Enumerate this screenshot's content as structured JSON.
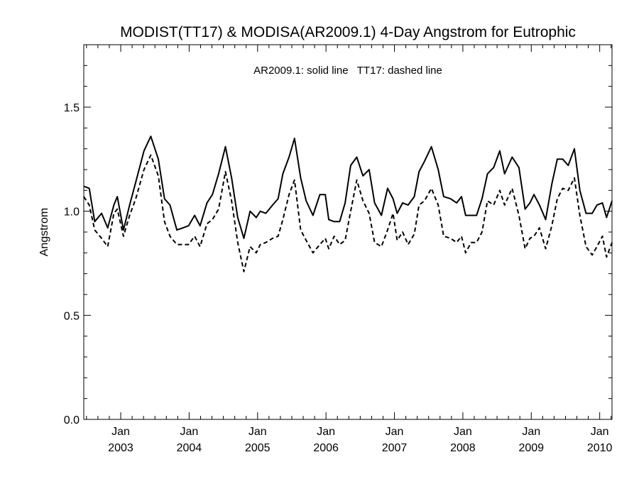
{
  "chart_data": {
    "type": "line",
    "title": "MODIST(TT17) & MODISA(AR2009.1) 4-Day Angstrom for Eutrophic",
    "annotation": "AR2009.1: solid line   TT17: dashed line",
    "xlabel": "",
    "ylabel": "Angstrom",
    "xlim": [
      2002.46,
      2010.18
    ],
    "ylim": [
      0.0,
      1.8
    ],
    "yticks": [
      {
        "value": 0.0,
        "label": "0.0"
      },
      {
        "value": 0.5,
        "label": "0.5"
      },
      {
        "value": 1.0,
        "label": "1.0"
      },
      {
        "value": 1.5,
        "label": "1.5"
      }
    ],
    "xticks": [
      {
        "value": 2003.0,
        "month": "Jan",
        "year": "2003"
      },
      {
        "value": 2004.0,
        "month": "Jan",
        "year": "2004"
      },
      {
        "value": 2005.0,
        "month": "Jan",
        "year": "2005"
      },
      {
        "value": 2006.0,
        "month": "Jan",
        "year": "2006"
      },
      {
        "value": 2007.0,
        "month": "Jan",
        "year": "2007"
      },
      {
        "value": 2008.0,
        "month": "Jan",
        "year": "2008"
      },
      {
        "value": 2009.0,
        "month": "Jan",
        "year": "2009"
      },
      {
        "value": 2010.0,
        "month": "Jan",
        "year": "2010"
      }
    ],
    "grid": false,
    "series": [
      {
        "style": "solid",
        "color": "#000000",
        "points": [
          [
            2002.46,
            1.12
          ],
          [
            2002.54,
            1.11
          ],
          [
            2002.62,
            0.95
          ],
          [
            2002.72,
            0.99
          ],
          [
            2002.81,
            0.92
          ],
          [
            2002.9,
            1.03
          ],
          [
            2002.95,
            1.07
          ],
          [
            2003.04,
            0.91
          ],
          [
            2003.13,
            1.03
          ],
          [
            2003.22,
            1.14
          ],
          [
            2003.34,
            1.29
          ],
          [
            2003.44,
            1.36
          ],
          [
            2003.55,
            1.25
          ],
          [
            2003.64,
            1.06
          ],
          [
            2003.72,
            1.03
          ],
          [
            2003.82,
            0.91
          ],
          [
            2003.91,
            0.92
          ],
          [
            2003.99,
            0.93
          ],
          [
            2004.08,
            0.98
          ],
          [
            2004.16,
            0.93
          ],
          [
            2004.26,
            1.04
          ],
          [
            2004.34,
            1.08
          ],
          [
            2004.43,
            1.18
          ],
          [
            2004.53,
            1.31
          ],
          [
            2004.62,
            1.16
          ],
          [
            2004.71,
            0.97
          ],
          [
            2004.8,
            0.87
          ],
          [
            2004.89,
            1.0
          ],
          [
            2004.98,
            0.97
          ],
          [
            2005.04,
            1.0
          ],
          [
            2005.12,
            0.99
          ],
          [
            2005.22,
            1.03
          ],
          [
            2005.3,
            1.06
          ],
          [
            2005.37,
            1.18
          ],
          [
            2005.46,
            1.26
          ],
          [
            2005.54,
            1.35
          ],
          [
            2005.63,
            1.16
          ],
          [
            2005.71,
            1.05
          ],
          [
            2005.81,
            0.98
          ],
          [
            2005.91,
            1.08
          ],
          [
            2005.99,
            1.08
          ],
          [
            2006.04,
            0.96
          ],
          [
            2006.12,
            0.95
          ],
          [
            2006.2,
            0.95
          ],
          [
            2006.28,
            1.04
          ],
          [
            2006.36,
            1.22
          ],
          [
            2006.45,
            1.26
          ],
          [
            2006.54,
            1.17
          ],
          [
            2006.63,
            1.2
          ],
          [
            2006.71,
            1.04
          ],
          [
            2006.81,
            0.98
          ],
          [
            2006.9,
            1.11
          ],
          [
            2006.98,
            1.06
          ],
          [
            2007.04,
            0.99
          ],
          [
            2007.12,
            1.04
          ],
          [
            2007.2,
            1.03
          ],
          [
            2007.29,
            1.07
          ],
          [
            2007.36,
            1.19
          ],
          [
            2007.44,
            1.24
          ],
          [
            2007.54,
            1.31
          ],
          [
            2007.64,
            1.2
          ],
          [
            2007.72,
            1.07
          ],
          [
            2007.82,
            1.06
          ],
          [
            2007.91,
            1.04
          ],
          [
            2007.98,
            1.07
          ],
          [
            2008.04,
            0.98
          ],
          [
            2008.12,
            0.98
          ],
          [
            2008.2,
            0.98
          ],
          [
            2008.28,
            1.06
          ],
          [
            2008.36,
            1.18
          ],
          [
            2008.45,
            1.21
          ],
          [
            2008.54,
            1.29
          ],
          [
            2008.61,
            1.18
          ],
          [
            2008.72,
            1.26
          ],
          [
            2008.82,
            1.21
          ],
          [
            2008.91,
            1.01
          ],
          [
            2008.98,
            1.04
          ],
          [
            2009.04,
            1.08
          ],
          [
            2009.12,
            1.03
          ],
          [
            2009.21,
            0.96
          ],
          [
            2009.3,
            1.13
          ],
          [
            2009.38,
            1.25
          ],
          [
            2009.46,
            1.25
          ],
          [
            2009.54,
            1.22
          ],
          [
            2009.63,
            1.3
          ],
          [
            2009.71,
            1.1
          ],
          [
            2009.8,
            0.99
          ],
          [
            2009.89,
            0.99
          ],
          [
            2009.96,
            1.03
          ],
          [
            2010.04,
            1.04
          ],
          [
            2010.1,
            0.97
          ],
          [
            2010.18,
            1.05
          ]
        ]
      },
      {
        "style": "dashed",
        "color": "#000000",
        "points": [
          [
            2002.46,
            1.07
          ],
          [
            2002.54,
            1.03
          ],
          [
            2002.62,
            0.91
          ],
          [
            2002.72,
            0.87
          ],
          [
            2002.81,
            0.83
          ],
          [
            2002.9,
            0.99
          ],
          [
            2002.95,
            1.01
          ],
          [
            2003.04,
            0.88
          ],
          [
            2003.13,
            0.98
          ],
          [
            2003.22,
            1.06
          ],
          [
            2003.34,
            1.2
          ],
          [
            2003.44,
            1.27
          ],
          [
            2003.55,
            1.17
          ],
          [
            2003.64,
            0.95
          ],
          [
            2003.72,
            0.88
          ],
          [
            2003.82,
            0.84
          ],
          [
            2003.91,
            0.84
          ],
          [
            2003.99,
            0.84
          ],
          [
            2004.08,
            0.88
          ],
          [
            2004.16,
            0.83
          ],
          [
            2004.26,
            0.94
          ],
          [
            2004.34,
            0.96
          ],
          [
            2004.43,
            1.01
          ],
          [
            2004.53,
            1.19
          ],
          [
            2004.62,
            1.05
          ],
          [
            2004.71,
            0.85
          ],
          [
            2004.8,
            0.71
          ],
          [
            2004.89,
            0.83
          ],
          [
            2004.98,
            0.8
          ],
          [
            2005.04,
            0.84
          ],
          [
            2005.12,
            0.85
          ],
          [
            2005.22,
            0.87
          ],
          [
            2005.3,
            0.88
          ],
          [
            2005.37,
            0.96
          ],
          [
            2005.46,
            1.08
          ],
          [
            2005.54,
            1.15
          ],
          [
            2005.63,
            0.91
          ],
          [
            2005.71,
            0.86
          ],
          [
            2005.81,
            0.8
          ],
          [
            2005.91,
            0.84
          ],
          [
            2005.99,
            0.87
          ],
          [
            2006.04,
            0.82
          ],
          [
            2006.12,
            0.88
          ],
          [
            2006.2,
            0.84
          ],
          [
            2006.28,
            0.86
          ],
          [
            2006.36,
            1.0
          ],
          [
            2006.45,
            1.15
          ],
          [
            2006.54,
            1.05
          ],
          [
            2006.63,
            0.99
          ],
          [
            2006.71,
            0.85
          ],
          [
            2006.81,
            0.83
          ],
          [
            2006.9,
            0.91
          ],
          [
            2006.98,
            0.99
          ],
          [
            2007.04,
            0.86
          ],
          [
            2007.12,
            0.9
          ],
          [
            2007.2,
            0.84
          ],
          [
            2007.29,
            0.89
          ],
          [
            2007.36,
            1.03
          ],
          [
            2007.44,
            1.05
          ],
          [
            2007.54,
            1.11
          ],
          [
            2007.64,
            1.03
          ],
          [
            2007.72,
            0.88
          ],
          [
            2007.82,
            0.87
          ],
          [
            2007.91,
            0.85
          ],
          [
            2007.98,
            0.88
          ],
          [
            2008.04,
            0.8
          ],
          [
            2008.12,
            0.85
          ],
          [
            2008.2,
            0.85
          ],
          [
            2008.28,
            0.9
          ],
          [
            2008.36,
            1.05
          ],
          [
            2008.45,
            1.03
          ],
          [
            2008.54,
            1.1
          ],
          [
            2008.61,
            1.03
          ],
          [
            2008.72,
            1.11
          ],
          [
            2008.82,
            0.98
          ],
          [
            2008.91,
            0.82
          ],
          [
            2008.98,
            0.87
          ],
          [
            2009.04,
            0.88
          ],
          [
            2009.12,
            0.92
          ],
          [
            2009.21,
            0.82
          ],
          [
            2009.3,
            0.93
          ],
          [
            2009.38,
            1.06
          ],
          [
            2009.46,
            1.11
          ],
          [
            2009.54,
            1.1
          ],
          [
            2009.63,
            1.16
          ],
          [
            2009.71,
            0.98
          ],
          [
            2009.8,
            0.83
          ],
          [
            2009.89,
            0.79
          ],
          [
            2009.96,
            0.83
          ],
          [
            2010.04,
            0.88
          ],
          [
            2010.1,
            0.78
          ],
          [
            2010.18,
            0.85
          ]
        ]
      }
    ]
  }
}
